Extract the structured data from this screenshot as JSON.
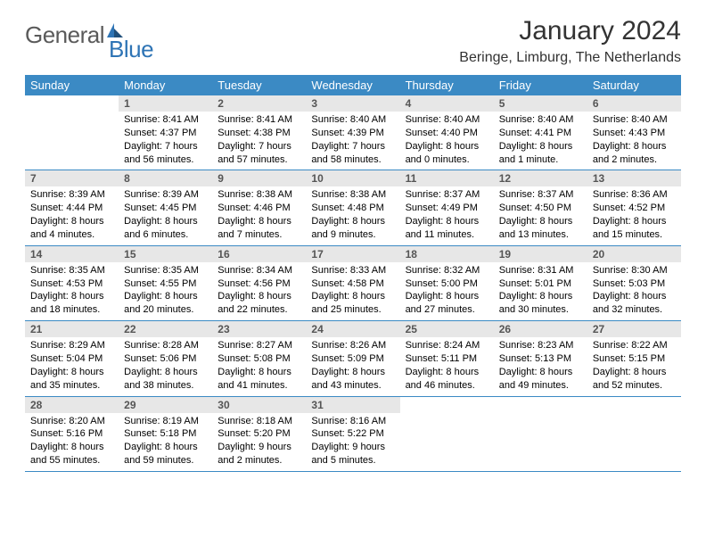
{
  "brand": {
    "general": "General",
    "blue": "Blue"
  },
  "title": "January 2024",
  "location": "Beringe, Limburg, The Netherlands",
  "colors": {
    "header_bg": "#3b8ac4",
    "header_text": "#ffffff",
    "daynum_bg": "#e7e7e7",
    "daynum_text": "#555555",
    "divider": "#3b8ac4",
    "logo_general": "#5a5a5a",
    "logo_blue": "#2e74b5"
  },
  "daysOfWeek": [
    "Sunday",
    "Monday",
    "Tuesday",
    "Wednesday",
    "Thursday",
    "Friday",
    "Saturday"
  ],
  "weeks": [
    [
      {
        "n": "",
        "sr": "",
        "ss": "",
        "dl": ""
      },
      {
        "n": "1",
        "sr": "Sunrise: 8:41 AM",
        "ss": "Sunset: 4:37 PM",
        "dl": "Daylight: 7 hours and 56 minutes."
      },
      {
        "n": "2",
        "sr": "Sunrise: 8:41 AM",
        "ss": "Sunset: 4:38 PM",
        "dl": "Daylight: 7 hours and 57 minutes."
      },
      {
        "n": "3",
        "sr": "Sunrise: 8:40 AM",
        "ss": "Sunset: 4:39 PM",
        "dl": "Daylight: 7 hours and 58 minutes."
      },
      {
        "n": "4",
        "sr": "Sunrise: 8:40 AM",
        "ss": "Sunset: 4:40 PM",
        "dl": "Daylight: 8 hours and 0 minutes."
      },
      {
        "n": "5",
        "sr": "Sunrise: 8:40 AM",
        "ss": "Sunset: 4:41 PM",
        "dl": "Daylight: 8 hours and 1 minute."
      },
      {
        "n": "6",
        "sr": "Sunrise: 8:40 AM",
        "ss": "Sunset: 4:43 PM",
        "dl": "Daylight: 8 hours and 2 minutes."
      }
    ],
    [
      {
        "n": "7",
        "sr": "Sunrise: 8:39 AM",
        "ss": "Sunset: 4:44 PM",
        "dl": "Daylight: 8 hours and 4 minutes."
      },
      {
        "n": "8",
        "sr": "Sunrise: 8:39 AM",
        "ss": "Sunset: 4:45 PM",
        "dl": "Daylight: 8 hours and 6 minutes."
      },
      {
        "n": "9",
        "sr": "Sunrise: 8:38 AM",
        "ss": "Sunset: 4:46 PM",
        "dl": "Daylight: 8 hours and 7 minutes."
      },
      {
        "n": "10",
        "sr": "Sunrise: 8:38 AM",
        "ss": "Sunset: 4:48 PM",
        "dl": "Daylight: 8 hours and 9 minutes."
      },
      {
        "n": "11",
        "sr": "Sunrise: 8:37 AM",
        "ss": "Sunset: 4:49 PM",
        "dl": "Daylight: 8 hours and 11 minutes."
      },
      {
        "n": "12",
        "sr": "Sunrise: 8:37 AM",
        "ss": "Sunset: 4:50 PM",
        "dl": "Daylight: 8 hours and 13 minutes."
      },
      {
        "n": "13",
        "sr": "Sunrise: 8:36 AM",
        "ss": "Sunset: 4:52 PM",
        "dl": "Daylight: 8 hours and 15 minutes."
      }
    ],
    [
      {
        "n": "14",
        "sr": "Sunrise: 8:35 AM",
        "ss": "Sunset: 4:53 PM",
        "dl": "Daylight: 8 hours and 18 minutes."
      },
      {
        "n": "15",
        "sr": "Sunrise: 8:35 AM",
        "ss": "Sunset: 4:55 PM",
        "dl": "Daylight: 8 hours and 20 minutes."
      },
      {
        "n": "16",
        "sr": "Sunrise: 8:34 AM",
        "ss": "Sunset: 4:56 PM",
        "dl": "Daylight: 8 hours and 22 minutes."
      },
      {
        "n": "17",
        "sr": "Sunrise: 8:33 AM",
        "ss": "Sunset: 4:58 PM",
        "dl": "Daylight: 8 hours and 25 minutes."
      },
      {
        "n": "18",
        "sr": "Sunrise: 8:32 AM",
        "ss": "Sunset: 5:00 PM",
        "dl": "Daylight: 8 hours and 27 minutes."
      },
      {
        "n": "19",
        "sr": "Sunrise: 8:31 AM",
        "ss": "Sunset: 5:01 PM",
        "dl": "Daylight: 8 hours and 30 minutes."
      },
      {
        "n": "20",
        "sr": "Sunrise: 8:30 AM",
        "ss": "Sunset: 5:03 PM",
        "dl": "Daylight: 8 hours and 32 minutes."
      }
    ],
    [
      {
        "n": "21",
        "sr": "Sunrise: 8:29 AM",
        "ss": "Sunset: 5:04 PM",
        "dl": "Daylight: 8 hours and 35 minutes."
      },
      {
        "n": "22",
        "sr": "Sunrise: 8:28 AM",
        "ss": "Sunset: 5:06 PM",
        "dl": "Daylight: 8 hours and 38 minutes."
      },
      {
        "n": "23",
        "sr": "Sunrise: 8:27 AM",
        "ss": "Sunset: 5:08 PM",
        "dl": "Daylight: 8 hours and 41 minutes."
      },
      {
        "n": "24",
        "sr": "Sunrise: 8:26 AM",
        "ss": "Sunset: 5:09 PM",
        "dl": "Daylight: 8 hours and 43 minutes."
      },
      {
        "n": "25",
        "sr": "Sunrise: 8:24 AM",
        "ss": "Sunset: 5:11 PM",
        "dl": "Daylight: 8 hours and 46 minutes."
      },
      {
        "n": "26",
        "sr": "Sunrise: 8:23 AM",
        "ss": "Sunset: 5:13 PM",
        "dl": "Daylight: 8 hours and 49 minutes."
      },
      {
        "n": "27",
        "sr": "Sunrise: 8:22 AM",
        "ss": "Sunset: 5:15 PM",
        "dl": "Daylight: 8 hours and 52 minutes."
      }
    ],
    [
      {
        "n": "28",
        "sr": "Sunrise: 8:20 AM",
        "ss": "Sunset: 5:16 PM",
        "dl": "Daylight: 8 hours and 55 minutes."
      },
      {
        "n": "29",
        "sr": "Sunrise: 8:19 AM",
        "ss": "Sunset: 5:18 PM",
        "dl": "Daylight: 8 hours and 59 minutes."
      },
      {
        "n": "30",
        "sr": "Sunrise: 8:18 AM",
        "ss": "Sunset: 5:20 PM",
        "dl": "Daylight: 9 hours and 2 minutes."
      },
      {
        "n": "31",
        "sr": "Sunrise: 8:16 AM",
        "ss": "Sunset: 5:22 PM",
        "dl": "Daylight: 9 hours and 5 minutes."
      },
      {
        "n": "",
        "sr": "",
        "ss": "",
        "dl": ""
      },
      {
        "n": "",
        "sr": "",
        "ss": "",
        "dl": ""
      },
      {
        "n": "",
        "sr": "",
        "ss": "",
        "dl": ""
      }
    ]
  ]
}
